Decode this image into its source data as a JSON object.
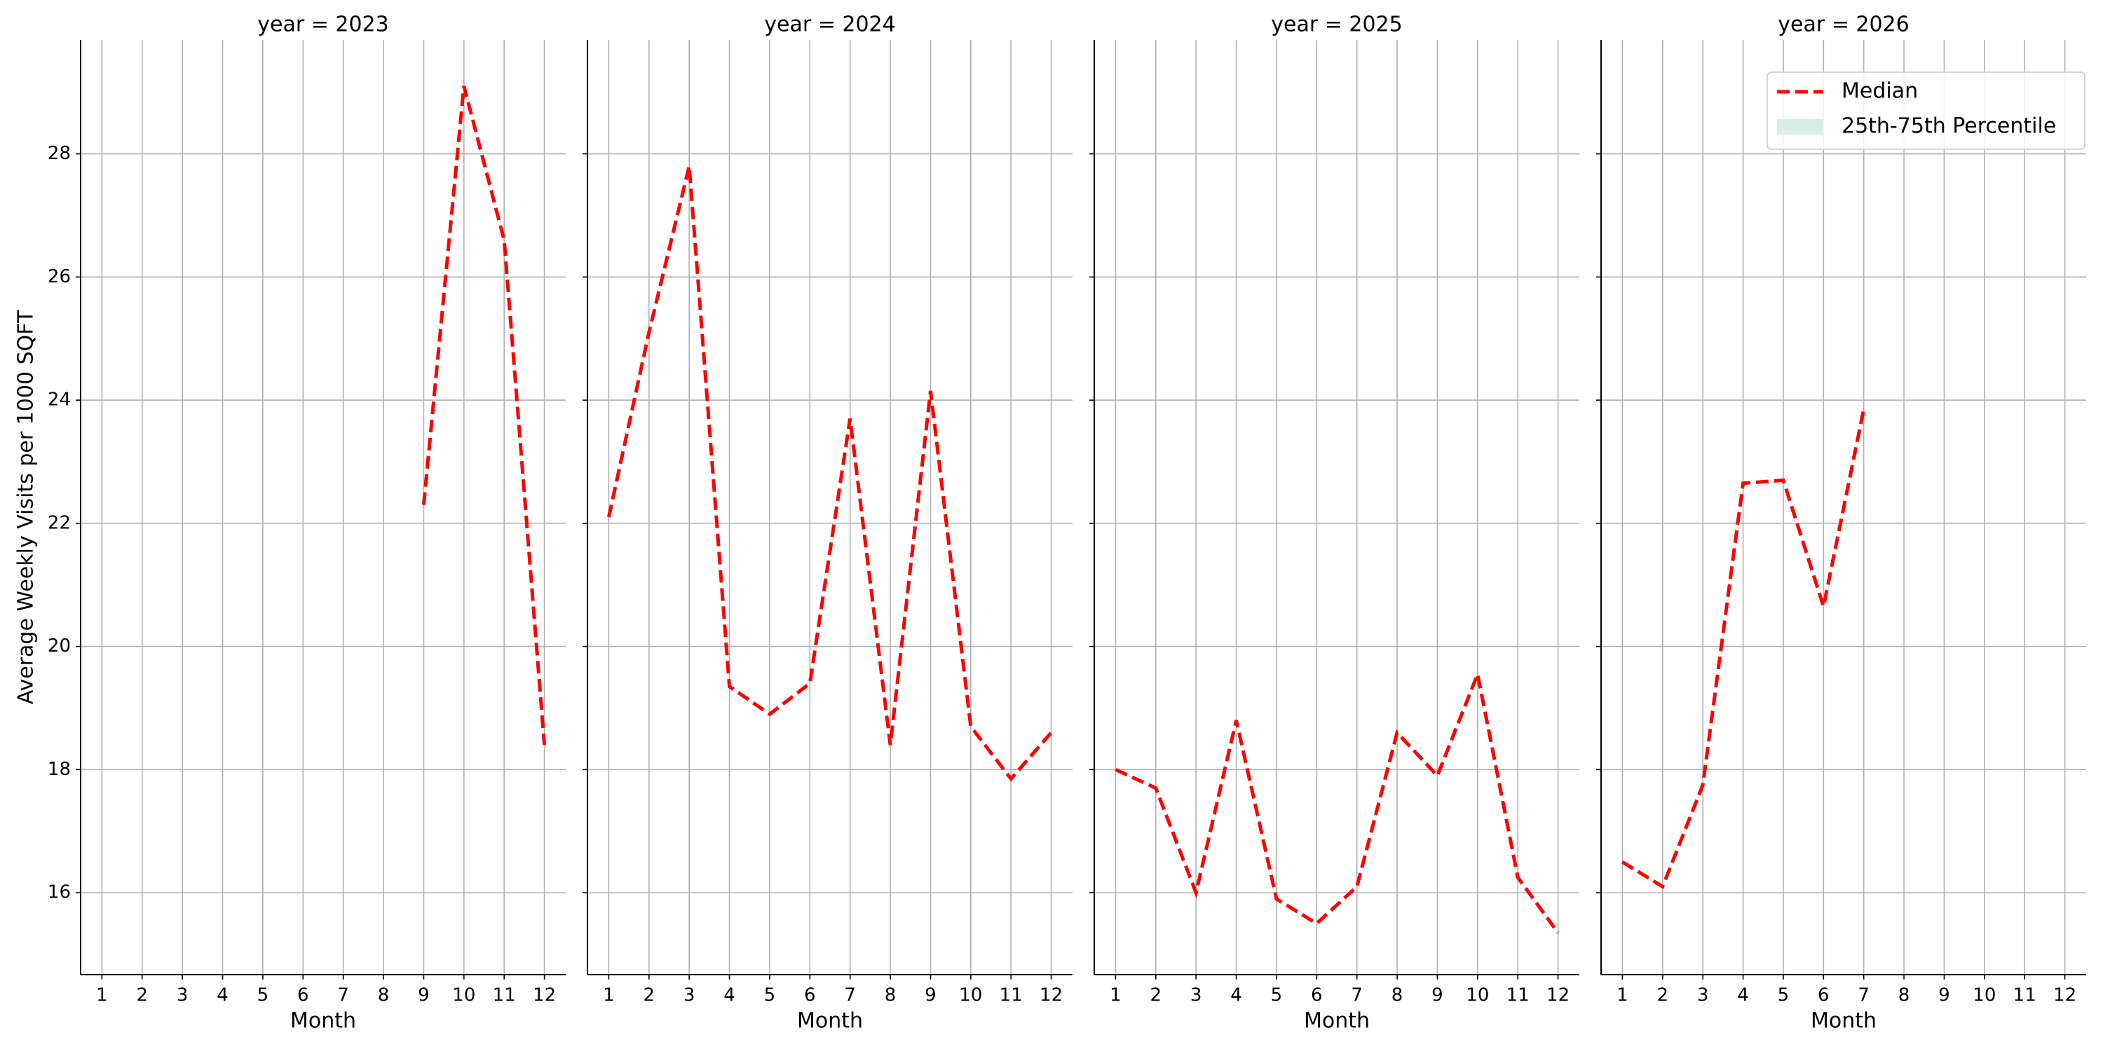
{
  "chart_data": [
    {
      "type": "line",
      "title": "year = 2023",
      "x_label": "Month",
      "y_label": "Average Weekly Visits per 1000 SQFT",
      "x": [
        1,
        2,
        3,
        4,
        5,
        6,
        7,
        8,
        9,
        10,
        11,
        12
      ],
      "xlim": [
        0.47,
        12.53
      ],
      "xticks": [
        1,
        2,
        3,
        4,
        5,
        6,
        7,
        8,
        9,
        10,
        11,
        12
      ],
      "ylim": [
        14.67,
        29.85
      ],
      "yticks": [
        16,
        18,
        20,
        22,
        24,
        26,
        28
      ],
      "grid": true,
      "series": [
        {
          "color": "#ff0000",
          "dash": "dashed",
          "values": [
            null,
            null,
            null,
            null,
            null,
            null,
            null,
            null,
            22.3,
            29.1,
            26.6,
            18.4
          ]
        }
      ]
    },
    {
      "type": "line",
      "title": "year = 2024",
      "x_label": "Month",
      "x": [
        1,
        2,
        3,
        4,
        5,
        6,
        7,
        8,
        9,
        10,
        11,
        12
      ],
      "xlim": [
        0.47,
        12.53
      ],
      "xticks": [
        1,
        2,
        3,
        4,
        5,
        6,
        7,
        8,
        9,
        10,
        11,
        12
      ],
      "ylim": [
        14.67,
        29.85
      ],
      "yticks": [
        16,
        18,
        20,
        22,
        24,
        26,
        28
      ],
      "grid": true,
      "series": [
        {
          "color": "#ff0000",
          "dash": "dashed",
          "values": [
            22.1,
            25.1,
            27.8,
            19.35,
            18.9,
            19.4,
            23.7,
            18.4,
            24.15,
            18.7,
            17.85,
            18.6
          ]
        }
      ]
    },
    {
      "type": "line",
      "title": "year = 2025",
      "x_label": "Month",
      "x": [
        1,
        2,
        3,
        4,
        5,
        6,
        7,
        8,
        9,
        10,
        11,
        12
      ],
      "xlim": [
        0.47,
        12.53
      ],
      "xticks": [
        1,
        2,
        3,
        4,
        5,
        6,
        7,
        8,
        9,
        10,
        11,
        12
      ],
      "ylim": [
        14.67,
        29.85
      ],
      "yticks": [
        16,
        18,
        20,
        22,
        24,
        26,
        28
      ],
      "grid": true,
      "series": [
        {
          "color": "#ff0000",
          "dash": "dashed",
          "values": [
            18.0,
            17.7,
            16.0,
            18.8,
            15.9,
            15.5,
            16.1,
            18.6,
            17.9,
            19.55,
            16.25,
            15.35
          ]
        }
      ]
    },
    {
      "type": "line",
      "title": "year = 2026",
      "x_label": "Month",
      "x": [
        1,
        2,
        3,
        4,
        5,
        6,
        7,
        8,
        9,
        10,
        11,
        12
      ],
      "xlim": [
        0.47,
        12.53
      ],
      "xticks": [
        1,
        2,
        3,
        4,
        5,
        6,
        7,
        8,
        9,
        10,
        11,
        12
      ],
      "ylim": [
        14.67,
        29.85
      ],
      "yticks": [
        16,
        18,
        20,
        22,
        24,
        26,
        28
      ],
      "grid": true,
      "series": [
        {
          "color": "#ff0000",
          "dash": "dashed",
          "values": [
            16.5,
            16.1,
            17.75,
            22.65,
            22.7,
            20.65,
            23.85,
            null,
            null,
            null,
            null,
            null
          ]
        }
      ],
      "legend": {
        "position": "upper right",
        "entries": [
          {
            "name": "Median",
            "color": "#ff0000",
            "style": "dashed"
          },
          {
            "name": "25th-75th Percentile",
            "color": "#d8efe7",
            "style": "patch"
          }
        ]
      }
    }
  ]
}
